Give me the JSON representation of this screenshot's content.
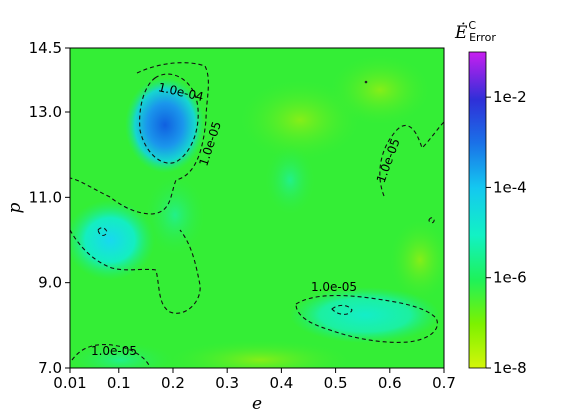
{
  "chart_data": {
    "type": "heatmap",
    "xlabel": "e",
    "ylabel": "p",
    "xlim": [
      0.01,
      0.7
    ],
    "ylim": [
      7.0,
      14.5
    ],
    "x_ticks": [
      "0.01",
      "0.1",
      "0.2",
      "0.3",
      "0.4",
      "0.5",
      "0.6",
      "0.7"
    ],
    "x_tick_values": [
      0.01,
      0.1,
      0.2,
      0.3,
      0.4,
      0.5,
      0.6,
      0.7
    ],
    "y_ticks": [
      "7.0",
      "9.0",
      "11.0",
      "13.0",
      "14.5"
    ],
    "y_tick_values": [
      7.0,
      9.0,
      11.0,
      13.0,
      14.5
    ],
    "colorbar": {
      "title": "Ė",
      "title_sup": "C",
      "title_sub": "Error",
      "scale": "log",
      "range": [
        1e-08,
        0.1
      ],
      "ticks": [
        "1e-2",
        "1e-4",
        "1e-6",
        "1e-8"
      ],
      "tick_exponents": [
        -2,
        -4,
        -6,
        -8
      ],
      "colors": [
        "#d4f50a",
        "#7cf200",
        "#1ef25a",
        "#12f2c4",
        "#14c8f0",
        "#1a72e8",
        "#2f2fd8",
        "#8a18e6",
        "#c81ef0"
      ]
    },
    "background_level": 1e-06,
    "contour_level_labels": [
      "1.0e-04",
      "1.0e-05",
      "1.0e-05",
      "1.0e-05",
      "1.0e-05"
    ],
    "hotspots": [
      {
        "e": 0.19,
        "p": 12.7,
        "level": 0.004
      },
      {
        "e": 0.07,
        "p": 10.2,
        "level": 0.00012
      },
      {
        "e": 0.52,
        "p": 8.4,
        "level": 5e-05
      },
      {
        "e": 0.63,
        "p": 8.1,
        "level": 3e-05
      },
      {
        "e": 0.1,
        "p": 7.1,
        "level": 3e-05
      },
      {
        "e": 0.42,
        "p": 11.4,
        "level": 4e-06
      }
    ]
  }
}
